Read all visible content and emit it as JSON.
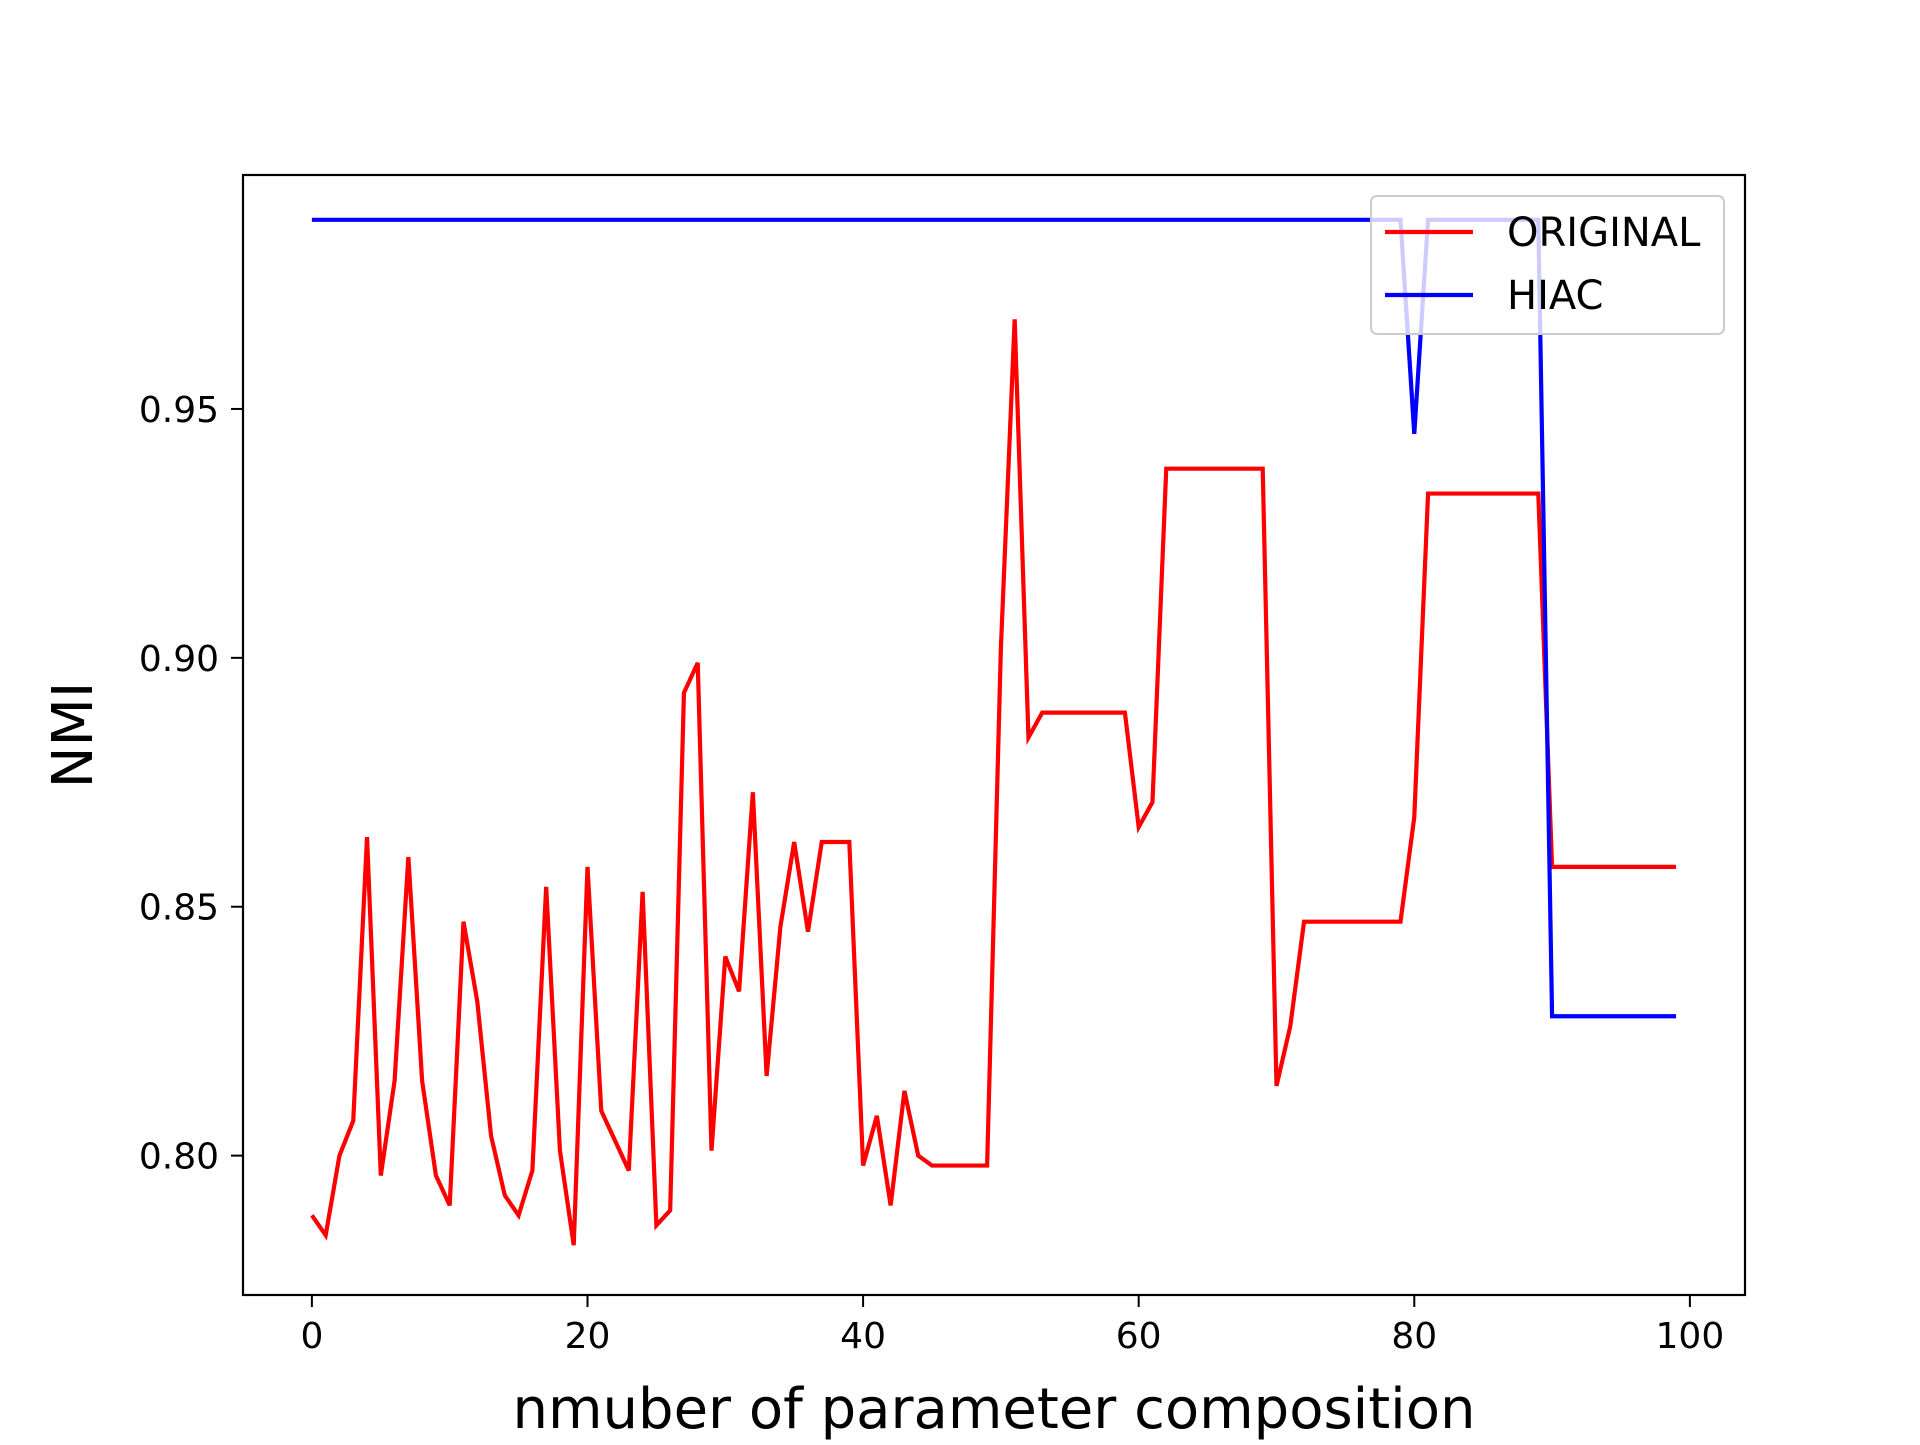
{
  "chart_data": {
    "type": "line",
    "title": "",
    "xlabel": "nmuber of parameter composition",
    "ylabel": "NMI",
    "xlim": [
      -5,
      104
    ],
    "ylim": [
      0.772,
      0.997
    ],
    "xticks": [
      0,
      20,
      40,
      60,
      80,
      100
    ],
    "yticks": [
      0.8,
      0.85,
      0.9,
      0.95
    ],
    "xtick_labels": [
      "0",
      "20",
      "40",
      "60",
      "80",
      "100"
    ],
    "ytick_labels": [
      "0.80",
      "0.85",
      "0.90",
      "0.95"
    ],
    "grid": false,
    "legend_position": "top-right",
    "series": [
      {
        "name": "ORIGINAL",
        "color": "#ff0000",
        "x": [
          0,
          1,
          2,
          3,
          4,
          5,
          6,
          7,
          8,
          9,
          10,
          11,
          12,
          13,
          14,
          15,
          16,
          17,
          18,
          19,
          20,
          21,
          22,
          23,
          24,
          25,
          26,
          27,
          28,
          29,
          30,
          31,
          32,
          33,
          34,
          35,
          36,
          37,
          38,
          39,
          40,
          41,
          42,
          43,
          44,
          45,
          46,
          47,
          48,
          49,
          50,
          51,
          52,
          53,
          54,
          55,
          56,
          57,
          58,
          59,
          60,
          61,
          62,
          63,
          64,
          65,
          66,
          67,
          68,
          69,
          70,
          71,
          72,
          73,
          74,
          75,
          76,
          77,
          78,
          79,
          80,
          81,
          82,
          83,
          84,
          85,
          86,
          87,
          88,
          89,
          90,
          91,
          92,
          93,
          94,
          95,
          96,
          97,
          98,
          99
        ],
        "values": [
          0.788,
          0.784,
          0.8,
          0.807,
          0.864,
          0.796,
          0.815,
          0.86,
          0.815,
          0.796,
          0.79,
          0.847,
          0.831,
          0.804,
          0.792,
          0.788,
          0.797,
          0.854,
          0.801,
          0.782,
          0.858,
          0.809,
          0.803,
          0.797,
          0.853,
          0.786,
          0.789,
          0.893,
          0.899,
          0.801,
          0.84,
          0.833,
          0.873,
          0.816,
          0.846,
          0.863,
          0.845,
          0.863,
          0.863,
          0.863,
          0.798,
          0.808,
          0.79,
          0.813,
          0.8,
          0.798,
          0.798,
          0.798,
          0.798,
          0.798,
          0.902,
          0.968,
          0.884,
          0.889,
          0.889,
          0.889,
          0.889,
          0.889,
          0.889,
          0.889,
          0.866,
          0.871,
          0.938,
          0.938,
          0.938,
          0.938,
          0.938,
          0.938,
          0.938,
          0.938,
          0.814,
          0.826,
          0.847,
          0.847,
          0.847,
          0.847,
          0.847,
          0.847,
          0.847,
          0.847,
          0.868,
          0.933,
          0.933,
          0.933,
          0.933,
          0.933,
          0.933,
          0.933,
          0.933,
          0.933,
          0.858,
          0.858,
          0.858,
          0.858,
          0.858,
          0.858,
          0.858,
          0.858,
          0.858,
          0.858
        ]
      },
      {
        "name": "HIAC",
        "color": "#0000ff",
        "x": [
          0,
          1,
          2,
          3,
          4,
          5,
          6,
          7,
          8,
          9,
          10,
          11,
          12,
          13,
          14,
          15,
          16,
          17,
          18,
          19,
          20,
          21,
          22,
          23,
          24,
          25,
          26,
          27,
          28,
          29,
          30,
          31,
          32,
          33,
          34,
          35,
          36,
          37,
          38,
          39,
          40,
          41,
          42,
          43,
          44,
          45,
          46,
          47,
          48,
          49,
          50,
          51,
          52,
          53,
          54,
          55,
          56,
          57,
          58,
          59,
          60,
          61,
          62,
          63,
          64,
          65,
          66,
          67,
          68,
          69,
          70,
          71,
          72,
          73,
          74,
          75,
          76,
          77,
          78,
          79,
          80,
          81,
          82,
          83,
          84,
          85,
          86,
          87,
          88,
          89,
          90,
          91,
          92,
          93,
          94,
          95,
          96,
          97,
          98,
          99
        ],
        "values": [
          0.988,
          0.988,
          0.988,
          0.988,
          0.988,
          0.988,
          0.988,
          0.988,
          0.988,
          0.988,
          0.988,
          0.988,
          0.988,
          0.988,
          0.988,
          0.988,
          0.988,
          0.988,
          0.988,
          0.988,
          0.988,
          0.988,
          0.988,
          0.988,
          0.988,
          0.988,
          0.988,
          0.988,
          0.988,
          0.988,
          0.988,
          0.988,
          0.988,
          0.988,
          0.988,
          0.988,
          0.988,
          0.988,
          0.988,
          0.988,
          0.988,
          0.988,
          0.988,
          0.988,
          0.988,
          0.988,
          0.988,
          0.988,
          0.988,
          0.988,
          0.988,
          0.988,
          0.988,
          0.988,
          0.988,
          0.988,
          0.988,
          0.988,
          0.988,
          0.988,
          0.988,
          0.988,
          0.988,
          0.988,
          0.988,
          0.988,
          0.988,
          0.988,
          0.988,
          0.988,
          0.988,
          0.988,
          0.988,
          0.988,
          0.988,
          0.988,
          0.988,
          0.988,
          0.988,
          0.988,
          0.945,
          0.988,
          0.988,
          0.988,
          0.988,
          0.988,
          0.988,
          0.988,
          0.988,
          0.988,
          0.828,
          0.828,
          0.828,
          0.828,
          0.828,
          0.828,
          0.828,
          0.828,
          0.828,
          0.828
        ]
      }
    ]
  }
}
